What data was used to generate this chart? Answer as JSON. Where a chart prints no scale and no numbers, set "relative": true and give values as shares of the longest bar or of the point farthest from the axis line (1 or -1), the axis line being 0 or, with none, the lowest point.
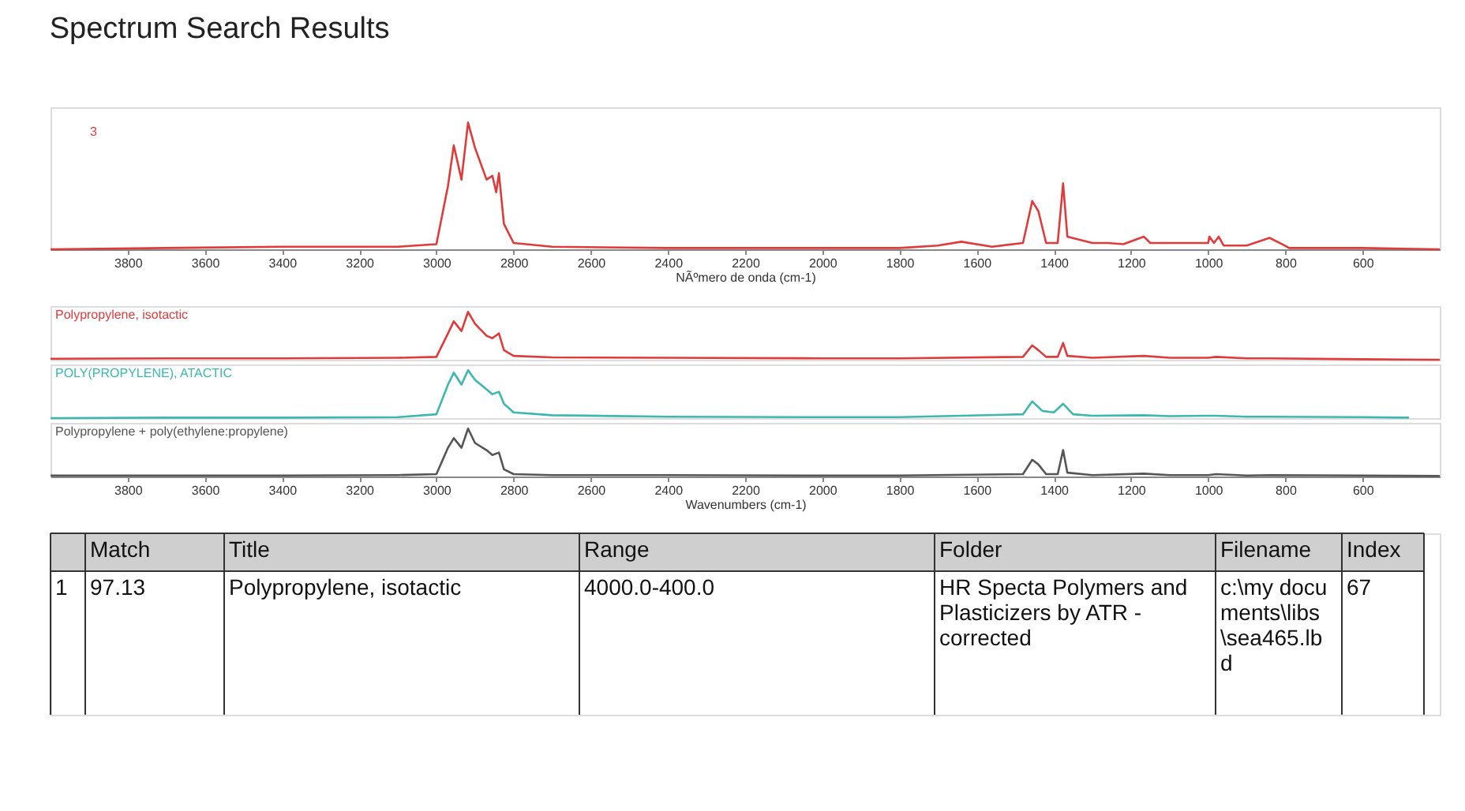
{
  "chart_data": [
    {
      "type": "line",
      "title": "Spectrum Search Results",
      "xlabel": "NÃºmero de onda (cm-1)",
      "relative": true,
      "annotations": [
        "3"
      ],
      "xlim": [
        4000,
        400
      ],
      "xticks": [
        3800,
        3600,
        3400,
        3200,
        3000,
        2800,
        2600,
        2400,
        2200,
        2000,
        1800,
        1600,
        1400,
        1200,
        1000,
        800,
        600
      ],
      "x": [
        4000,
        3700,
        3400,
        3100,
        3000,
        2970,
        2955,
        2935,
        2918,
        2900,
        2870,
        2855,
        2845,
        2838,
        2825,
        2800,
        2700,
        2400,
        2000,
        1800,
        1700,
        1640,
        1560,
        1480,
        1456,
        1440,
        1420,
        1390,
        1376,
        1365,
        1300,
        1260,
        1220,
        1167,
        1150,
        1100,
        1000,
        997,
        985,
        973,
        960,
        900,
        841,
        808,
        790,
        600,
        400
      ],
      "series": [
        {
          "color": "#e03a3a",
          "values": [
            0,
            0.01,
            0.02,
            0.02,
            0.04,
            0.5,
            0.82,
            0.55,
            1.0,
            0.8,
            0.55,
            0.58,
            0.45,
            0.6,
            0.2,
            0.05,
            0.02,
            0.01,
            0.01,
            0.01,
            0.03,
            0.06,
            0.02,
            0.05,
            0.38,
            0.3,
            0.05,
            0.05,
            0.52,
            0.1,
            0.05,
            0.05,
            0.04,
            0.1,
            0.05,
            0.05,
            0.05,
            0.1,
            0.05,
            0.1,
            0.03,
            0.03,
            0.09,
            0.04,
            0.01,
            0.01,
            0
          ]
        }
      ]
    },
    {
      "type": "line",
      "relative": true,
      "tick_labels": false,
      "xlim": [
        4000,
        400
      ],
      "x": [
        4000,
        3700,
        3400,
        3100,
        3000,
        2970,
        2955,
        2935,
        2918,
        2900,
        2870,
        2855,
        2838,
        2825,
        2800,
        2700,
        2400,
        2000,
        1800,
        1480,
        1456,
        1440,
        1420,
        1390,
        1376,
        1365,
        1300,
        1167,
        1100,
        1000,
        980,
        900,
        840,
        600,
        400
      ],
      "series": [
        {
          "name": "Polypropylene, isotactic",
          "color": "#e03a3a",
          "values": [
            0.02,
            0.03,
            0.03,
            0.04,
            0.06,
            0.55,
            0.8,
            0.6,
            1.0,
            0.75,
            0.5,
            0.45,
            0.55,
            0.2,
            0.08,
            0.05,
            0.04,
            0.03,
            0.03,
            0.06,
            0.3,
            0.2,
            0.06,
            0.06,
            0.35,
            0.08,
            0.04,
            0.08,
            0.04,
            0.04,
            0.06,
            0.03,
            0.03,
            0.01,
            0
          ]
        }
      ]
    },
    {
      "type": "line",
      "relative": true,
      "tick_labels": false,
      "xlim": [
        4000,
        400
      ],
      "x": [
        4000,
        3700,
        3400,
        3100,
        3000,
        2970,
        2955,
        2935,
        2918,
        2900,
        2870,
        2855,
        2838,
        2825,
        2800,
        2700,
        2400,
        2000,
        1800,
        1480,
        1456,
        1430,
        1400,
        1376,
        1350,
        1300,
        1167,
        1100,
        1000,
        980,
        900,
        840,
        600,
        480
      ],
      "series": [
        {
          "name": "POLY(PROPYLENE), ATACTIC",
          "color": "#3cb8ae",
          "values": [
            0,
            0.01,
            0.01,
            0.02,
            0.08,
            0.7,
            0.95,
            0.7,
            1.0,
            0.8,
            0.6,
            0.5,
            0.55,
            0.3,
            0.12,
            0.06,
            0.03,
            0.02,
            0.02,
            0.08,
            0.35,
            0.15,
            0.12,
            0.3,
            0.08,
            0.05,
            0.06,
            0.04,
            0.05,
            0.05,
            0.03,
            0.03,
            0.02,
            0.01
          ]
        }
      ]
    },
    {
      "type": "line",
      "relative": true,
      "tick_labels": "x",
      "xlabel": "Wavenumbers (cm-1)",
      "xlim": [
        4000,
        400
      ],
      "xticks": [
        3800,
        3600,
        3400,
        3200,
        3000,
        2800,
        2600,
        2400,
        2200,
        2000,
        1800,
        1600,
        1400,
        1200,
        1000,
        800,
        600
      ],
      "x": [
        4000,
        3700,
        3400,
        3100,
        3000,
        2970,
        2955,
        2935,
        2918,
        2900,
        2870,
        2855,
        2838,
        2825,
        2800,
        2700,
        2400,
        2000,
        1800,
        1480,
        1456,
        1440,
        1420,
        1390,
        1376,
        1365,
        1300,
        1167,
        1100,
        1000,
        980,
        900,
        840,
        600,
        400
      ],
      "series": [
        {
          "name": "Polypropylene + poly(ethylene:propylene)",
          "color": "#555555",
          "values": [
            0.02,
            0.02,
            0.02,
            0.03,
            0.05,
            0.6,
            0.8,
            0.6,
            1.0,
            0.7,
            0.55,
            0.45,
            0.5,
            0.15,
            0.05,
            0.03,
            0.03,
            0.02,
            0.02,
            0.05,
            0.35,
            0.25,
            0.05,
            0.05,
            0.55,
            0.08,
            0.03,
            0.06,
            0.03,
            0.03,
            0.05,
            0.02,
            0.03,
            0.02,
            0.01
          ]
        }
      ]
    },
    {
      "type": "other",
      "annotations": [
        "Match",
        "Title",
        "Range",
        "Folder",
        "Filename",
        "Index",
        "1",
        "97.13",
        "Polypropylene, isotactic",
        "4000.0-400.0",
        "HR Specta Polymers and Plasticizers by ATR - corrected",
        "c:\\my documents\\libs\\sea465.lbd",
        "67"
      ]
    }
  ]
}
